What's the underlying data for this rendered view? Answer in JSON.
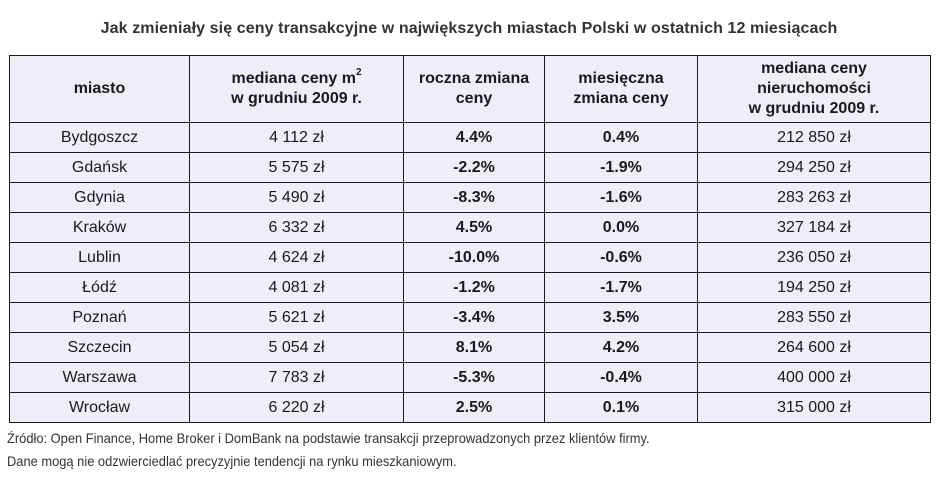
{
  "title": "Jak zmieniały się ceny transakcyjne w największych miastach Polski w ostatnich 12 miesiącach",
  "table": {
    "headers": {
      "city": "miasto",
      "median_m2_line1": "mediana ceny m",
      "median_m2_sup": "2",
      "median_m2_line2": "w grudniu 2009 r.",
      "annual_line1": "roczna zmiana",
      "annual_line2": "ceny",
      "monthly_line1": "miesięczna",
      "monthly_line2": "zmiana ceny",
      "property_line1": "mediana ceny",
      "property_line2": "nieruchomości",
      "property_line3": "w grudniu 2009 r."
    },
    "rows": [
      {
        "city": "Bydgoszcz",
        "median_m2": "4 112 zł",
        "annual": "4.4%",
        "monthly": "0.4%",
        "property": "212 850 zł"
      },
      {
        "city": "Gdańsk",
        "median_m2": "5 575 zł",
        "annual": "-2.2%",
        "monthly": "-1.9%",
        "property": "294 250 zł"
      },
      {
        "city": "Gdynia",
        "median_m2": "5 490 zł",
        "annual": "-8.3%",
        "monthly": "-1.6%",
        "property": "283 263 zł"
      },
      {
        "city": "Kraków",
        "median_m2": "6 332 zł",
        "annual": "4.5%",
        "monthly": "0.0%",
        "property": "327 184 zł"
      },
      {
        "city": "Lublin",
        "median_m2": "4 624 zł",
        "annual": "-10.0%",
        "monthly": "-0.6%",
        "property": "236 050 zł"
      },
      {
        "city": "Łódź",
        "median_m2": "4 081 zł",
        "annual": "-1.2%",
        "monthly": "-1.7%",
        "property": "194 250 zł"
      },
      {
        "city": "Poznań",
        "median_m2": "5 621 zł",
        "annual": "-3.4%",
        "monthly": "3.5%",
        "property": "283 550 zł"
      },
      {
        "city": "Szczecin",
        "median_m2": "5 054 zł",
        "annual": "8.1%",
        "monthly": "4.2%",
        "property": "264 600 zł"
      },
      {
        "city": "Warszawa",
        "median_m2": "7 783 zł",
        "annual": "-5.3%",
        "monthly": "-0.4%",
        "property": "400 000 zł"
      },
      {
        "city": "Wrocław",
        "median_m2": "6 220 zł",
        "annual": "2.5%",
        "monthly": "0.1%",
        "property": "315 000 zł"
      }
    ]
  },
  "footnotes": {
    "source": "Źródło: Open Finance, Home Broker i DomBank na podstawie transakcji przeprowadzonych przez klientów firmy.",
    "disclaimer": "Dane mogą nie odzwierciedlać precyzyjnie tendencji na rynku mieszkaniowym."
  },
  "colors": {
    "table_background": "#efedf8",
    "border": "#1a1a1a",
    "title_text": "#333333"
  }
}
